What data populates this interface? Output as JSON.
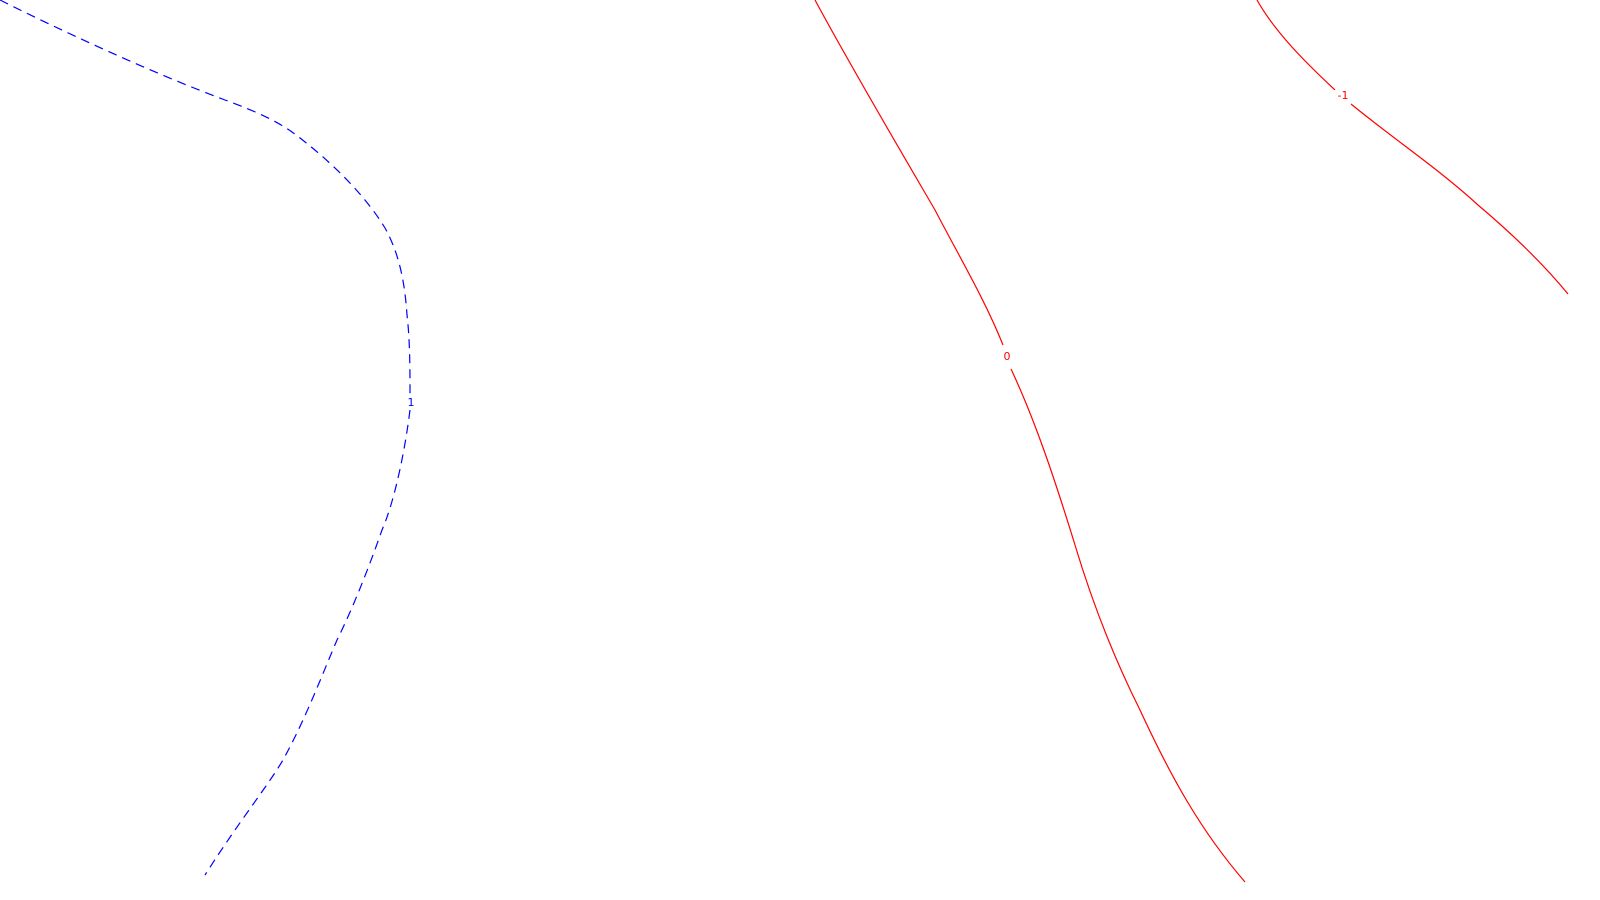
{
  "chart_data": {
    "type": "contour",
    "title": "",
    "xlabel": "",
    "ylabel": "",
    "legend": "none",
    "grid": false,
    "background": "#ffffff",
    "levels": [
      {
        "id": "level-1",
        "label": "1",
        "value": 1,
        "color": "#0000ff",
        "style": "dashed"
      },
      {
        "id": "level-0",
        "label": "0",
        "value": 0,
        "color": "#ff0000",
        "style": "solid"
      },
      {
        "id": "level-neg1",
        "label": "-1",
        "value": -1,
        "color": "#ff0000",
        "style": "solid"
      }
    ]
  }
}
